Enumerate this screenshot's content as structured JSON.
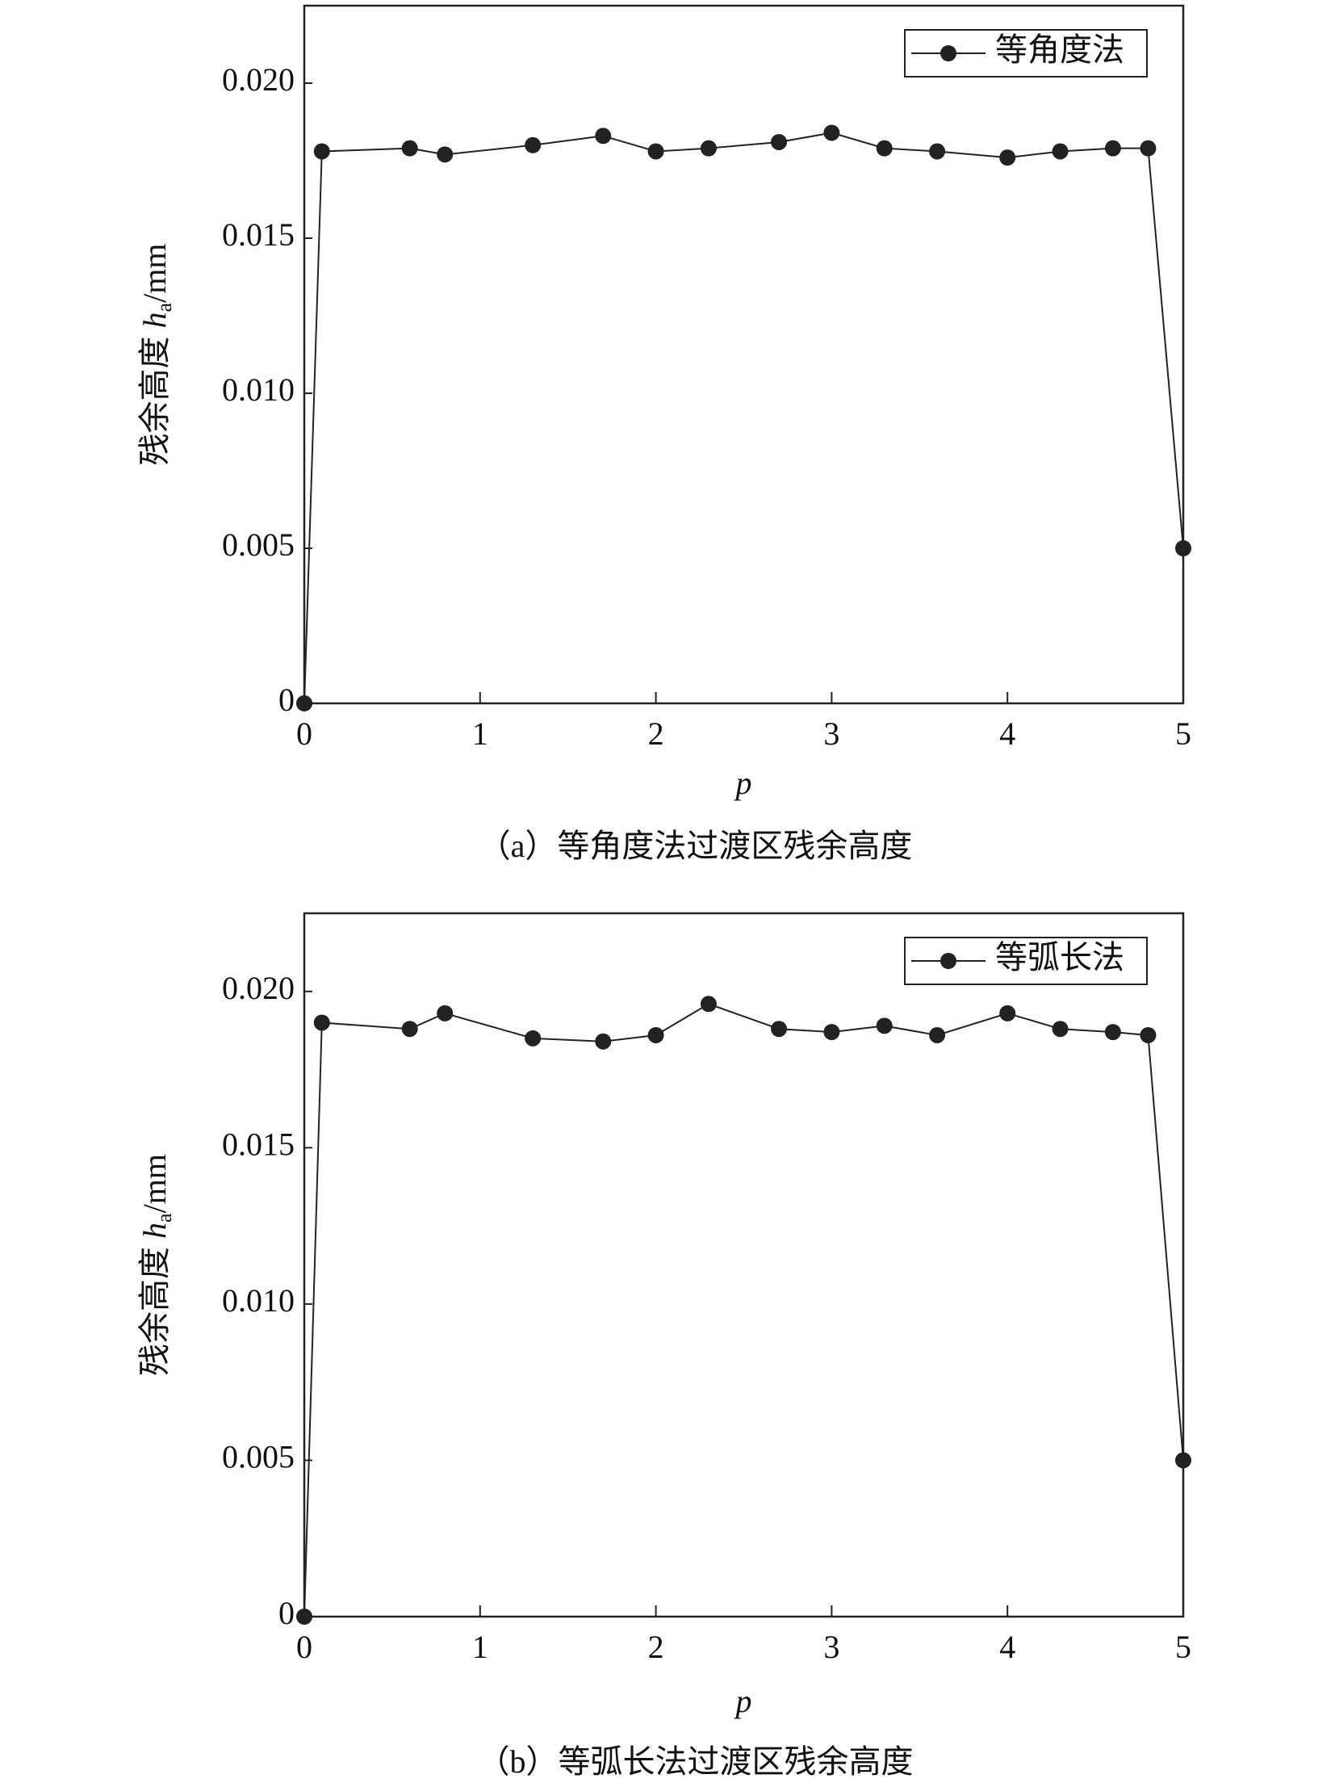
{
  "chart_data": [
    {
      "type": "line",
      "x": [
        0,
        0.1,
        0.6,
        0.8,
        1.3,
        1.7,
        2.0,
        2.3,
        2.7,
        3.0,
        3.3,
        3.6,
        4.0,
        4.3,
        4.6,
        4.8,
        5.0
      ],
      "series": [
        {
          "name": "等角度法",
          "color": "#222222",
          "values": [
            0,
            0.0178,
            0.0179,
            0.0177,
            0.018,
            0.0183,
            0.0178,
            0.0179,
            0.0181,
            0.0184,
            0.0179,
            0.0178,
            0.0176,
            0.0178,
            0.0179,
            0.0179,
            0.005
          ]
        }
      ],
      "xlim": [
        0,
        5
      ],
      "xticks": [
        0,
        1,
        2,
        3,
        4,
        5
      ],
      "ylim": [
        0,
        0.0225
      ],
      "yticks": [
        0,
        {
          "value": 0.005,
          "label": "0.005"
        },
        {
          "value": 0.01,
          "label": "0.010"
        },
        {
          "value": 0.015,
          "label": "0.015"
        },
        {
          "value": 0.02,
          "label": "0.020"
        }
      ],
      "xlabel": "p",
      "ylabel": "残余高度 h",
      "ylabel_sub": "a",
      "ylabel_unit": "/mm",
      "caption": "（a）等角度法过渡区残余高度",
      "legend": "upper right",
      "grid": false
    },
    {
      "type": "line",
      "x": [
        0,
        0.1,
        0.6,
        0.8,
        1.3,
        1.7,
        2.0,
        2.3,
        2.7,
        3.0,
        3.3,
        3.6,
        4.0,
        4.3,
        4.6,
        4.8,
        5.0
      ],
      "series": [
        {
          "name": "等弧长法",
          "color": "#222222",
          "values": [
            0,
            0.019,
            0.0188,
            0.0193,
            0.0185,
            0.0184,
            0.0186,
            0.0196,
            0.0188,
            0.0187,
            0.0189,
            0.0186,
            0.0193,
            0.0188,
            0.0187,
            0.0186,
            0.005
          ]
        }
      ],
      "xlim": [
        0,
        5
      ],
      "xticks": [
        0,
        1,
        2,
        3,
        4,
        5
      ],
      "ylim": [
        0,
        0.0225
      ],
      "yticks": [
        0,
        {
          "value": 0.005,
          "label": "0.005"
        },
        {
          "value": 0.01,
          "label": "0.010"
        },
        {
          "value": 0.015,
          "label": "0.015"
        },
        {
          "value": 0.02,
          "label": "0.020"
        }
      ],
      "xlabel": "p",
      "ylabel": "残余高度 h",
      "ylabel_sub": "a",
      "ylabel_unit": "/mm",
      "caption": "（b）等弧长法过渡区残余高度",
      "legend": "upper right",
      "grid": false
    }
  ]
}
